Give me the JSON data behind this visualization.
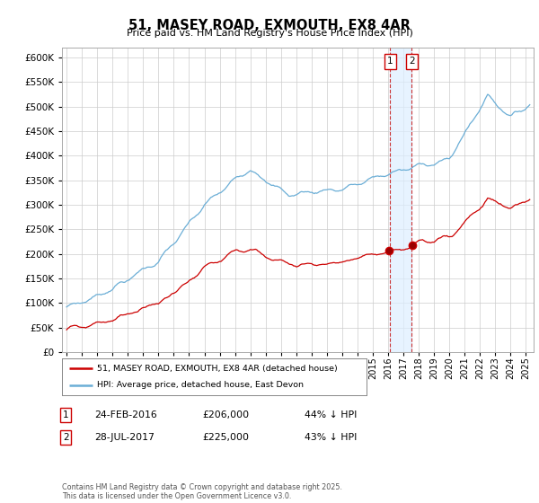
{
  "title": "51, MASEY ROAD, EXMOUTH, EX8 4AR",
  "subtitle": "Price paid vs. HM Land Registry's House Price Index (HPI)",
  "ylim": [
    0,
    620000
  ],
  "yticks": [
    0,
    50000,
    100000,
    150000,
    200000,
    250000,
    300000,
    350000,
    400000,
    450000,
    500000,
    550000,
    600000
  ],
  "xlim_start": 1994.7,
  "xlim_end": 2025.5,
  "hpi_color": "#6baed6",
  "price_color": "#cc0000",
  "vline_color": "#cc3333",
  "grid_color": "#cccccc",
  "background_color": "#ffffff",
  "transaction1_year": 2016.12,
  "transaction2_year": 2017.55,
  "transaction1_label": "1",
  "transaction2_label": "2",
  "transaction1_price": 206000,
  "transaction2_price": 225000,
  "legend_entries": [
    "51, MASEY ROAD, EXMOUTH, EX8 4AR (detached house)",
    "HPI: Average price, detached house, East Devon"
  ],
  "table_rows": [
    [
      "1",
      "24-FEB-2016",
      "£206,000",
      "44% ↓ HPI"
    ],
    [
      "2",
      "28-JUL-2017",
      "£225,000",
      "43% ↓ HPI"
    ]
  ],
  "footnote": "Contains HM Land Registry data © Crown copyright and database right 2025.\nThis data is licensed under the Open Government Licence v3.0."
}
